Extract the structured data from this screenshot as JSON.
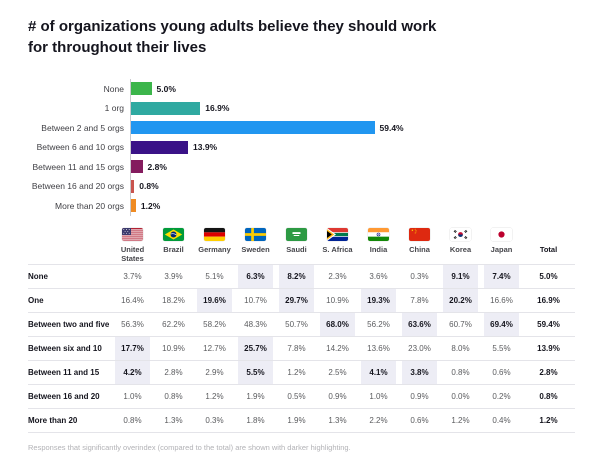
{
  "title": "# of organizations young adults believe they should work for throughout their lives",
  "chart_data": {
    "type": "bar",
    "orientation": "horizontal",
    "title": "# of organizations young adults believe they should work for throughout their lives",
    "categories": [
      "None",
      "1 org",
      "Between 2 and 5 orgs",
      "Between 6 and 10 orgs",
      "Between 11 and 15 orgs",
      "Between 16 and 20 orgs",
      "More than 20 orgs"
    ],
    "values": [
      5.0,
      16.9,
      59.4,
      13.9,
      2.8,
      0.8,
      1.2
    ],
    "value_labels": [
      "5.0%",
      "16.9%",
      "59.4%",
      "13.9%",
      "2.8%",
      "0.8%",
      "1.2%"
    ],
    "bar_colors": [
      "#3cb54b",
      "#2fa9a1",
      "#2196f0",
      "#3a1287",
      "#841c5e",
      "#c9544e",
      "#ef8b23"
    ],
    "xlabel": "",
    "ylabel": "",
    "xlim": [
      0,
      65
    ],
    "unit": "%",
    "grid": false,
    "legend": false
  },
  "table": {
    "columns": [
      {
        "label": "United States",
        "flag": "us"
      },
      {
        "label": "Brazil",
        "flag": "br"
      },
      {
        "label": "Germany",
        "flag": "de"
      },
      {
        "label": "Sweden",
        "flag": "se"
      },
      {
        "label": "Saudi",
        "flag": "sa"
      },
      {
        "label": "S. Africa",
        "flag": "za"
      },
      {
        "label": "India",
        "flag": "in"
      },
      {
        "label": "China",
        "flag": "cn"
      },
      {
        "label": "Korea",
        "flag": "kr"
      },
      {
        "label": "Japan",
        "flag": "jp"
      },
      {
        "label": "Total",
        "flag": null
      }
    ],
    "rows": [
      {
        "label": "None",
        "values": [
          "3.7%",
          "3.9%",
          "5.1%",
          "6.3%",
          "8.2%",
          "2.3%",
          "3.6%",
          "0.3%",
          "9.1%",
          "7.4%",
          "5.0%"
        ],
        "highlight": [
          3,
          4,
          8,
          9
        ]
      },
      {
        "label": "One",
        "values": [
          "16.4%",
          "18.2%",
          "19.6%",
          "10.7%",
          "29.7%",
          "10.9%",
          "19.3%",
          "7.8%",
          "20.2%",
          "16.6%",
          "16.9%"
        ],
        "highlight": [
          2,
          4,
          6,
          8
        ]
      },
      {
        "label": "Between two and five",
        "values": [
          "56.3%",
          "62.2%",
          "58.2%",
          "48.3%",
          "50.7%",
          "68.0%",
          "56.2%",
          "63.6%",
          "60.7%",
          "69.4%",
          "59.4%"
        ],
        "highlight": [
          5,
          7,
          9
        ]
      },
      {
        "label": "Between six and 10",
        "values": [
          "17.7%",
          "10.9%",
          "12.7%",
          "25.7%",
          "7.8%",
          "14.2%",
          "13.6%",
          "23.0%",
          "8.0%",
          "5.5%",
          "13.9%"
        ],
        "highlight": [
          0,
          3
        ]
      },
      {
        "label": "Between 11 and 15",
        "values": [
          "4.2%",
          "2.8%",
          "2.9%",
          "5.5%",
          "1.2%",
          "2.5%",
          "4.1%",
          "3.8%",
          "0.8%",
          "0.6%",
          "2.8%"
        ],
        "highlight": [
          0,
          3,
          6,
          7
        ]
      },
      {
        "label": "Between 16 and 20",
        "values": [
          "1.0%",
          "0.8%",
          "1.2%",
          "1.9%",
          "0.5%",
          "0.9%",
          "1.0%",
          "0.9%",
          "0.0%",
          "0.2%",
          "0.8%"
        ],
        "highlight": []
      },
      {
        "label": "More than 20",
        "values": [
          "0.8%",
          "1.3%",
          "0.3%",
          "1.8%",
          "1.9%",
          "1.3%",
          "2.2%",
          "0.6%",
          "1.2%",
          "0.4%",
          "1.2%"
        ],
        "highlight": []
      }
    ]
  },
  "footnote": "Responses that significantly overindex (compared to the total) are shown with darker highlighting.",
  "colors": {
    "highlight_bg": "#ededf5",
    "axis_line": "#c9c9ce",
    "text_dark": "#15151e",
    "text_muted": "#5b5c5f"
  }
}
